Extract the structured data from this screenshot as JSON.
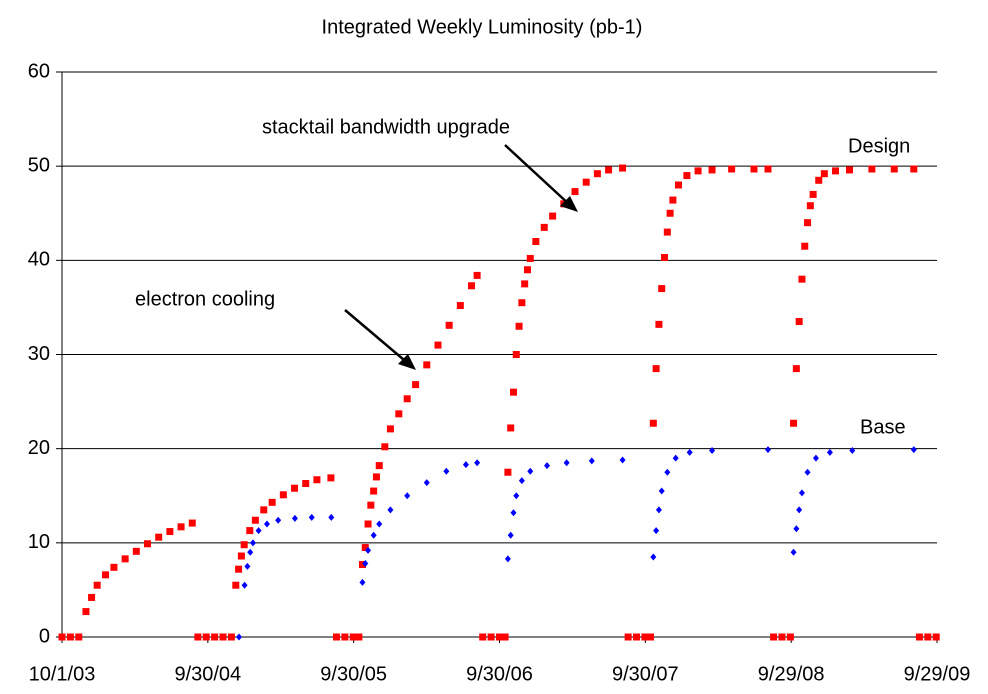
{
  "chart_data": {
    "type": "scatter",
    "title": "Integrated Weekly Luminosity (pb-1)",
    "annotations": [
      "electron cooling",
      "stacktail bandwidth upgrade"
    ],
    "xlim": [
      "2003-10-01",
      "2009-09-29"
    ],
    "xticks": [
      {
        "value": "2003-10-01",
        "label": "10/1/03"
      },
      {
        "value": "2004-09-30",
        "label": "9/30/04"
      },
      {
        "value": "2005-09-30",
        "label": "9/30/05"
      },
      {
        "value": "2006-09-30",
        "label": "9/30/06"
      },
      {
        "value": "2007-09-30",
        "label": "9/30/07"
      },
      {
        "value": "2008-09-29",
        "label": "9/29/08"
      },
      {
        "value": "2009-09-29",
        "label": "9/29/09"
      }
    ],
    "ylim": [
      0,
      60
    ],
    "yticks": [
      0,
      10,
      20,
      30,
      40,
      50,
      60
    ],
    "grid": true,
    "series": [
      {
        "name": "Design",
        "color": "#ff0000",
        "marker": "square",
        "x": [
          "2003-10-01",
          "2003-10-22",
          "2003-11-12",
          "2003-11-30",
          "2003-12-14",
          "2003-12-28",
          "2004-01-18",
          "2004-02-08",
          "2004-03-07",
          "2004-04-04",
          "2004-05-02",
          "2004-05-30",
          "2004-06-27",
          "2004-07-25",
          "2004-08-22",
          "2004-09-05",
          "2004-09-26",
          "2004-10-17",
          "2004-11-07",
          "2004-11-28",
          "2004-12-09",
          "2004-12-16",
          "2004-12-23",
          "2004-12-30",
          "2005-01-13",
          "2005-01-27",
          "2005-02-17",
          "2005-03-10",
          "2005-04-07",
          "2005-05-05",
          "2005-06-02",
          "2005-06-30",
          "2005-08-04",
          "2005-08-18",
          "2005-09-08",
          "2005-09-29",
          "2005-10-13",
          "2005-10-22",
          "2005-10-29",
          "2005-11-05",
          "2005-11-12",
          "2005-11-19",
          "2005-11-26",
          "2005-12-03",
          "2005-12-17",
          "2005-12-31",
          "2006-01-21",
          "2006-02-11",
          "2006-03-04",
          "2006-04-01",
          "2006-04-29",
          "2006-05-27",
          "2006-06-24",
          "2006-07-22",
          "2006-08-05",
          "2006-08-19",
          "2006-09-09",
          "2006-09-30",
          "2006-10-14",
          "2006-10-21",
          "2006-10-28",
          "2006-11-04",
          "2006-11-11",
          "2006-11-18",
          "2006-11-25",
          "2006-12-02",
          "2006-12-09",
          "2006-12-16",
          "2006-12-30",
          "2007-01-20",
          "2007-02-10",
          "2007-03-10",
          "2007-04-07",
          "2007-05-05",
          "2007-06-02",
          "2007-06-30",
          "2007-08-04",
          "2007-08-18",
          "2007-09-08",
          "2007-09-29",
          "2007-10-13",
          "2007-10-20",
          "2007-10-27",
          "2007-11-03",
          "2007-11-10",
          "2007-11-17",
          "2007-11-24",
          "2007-12-01",
          "2007-12-08",
          "2007-12-22",
          "2008-01-12",
          "2008-02-09",
          "2008-03-15",
          "2008-05-03",
          "2008-06-28",
          "2008-08-02",
          "2008-08-16",
          "2008-09-06",
          "2008-09-27",
          "2008-10-05",
          "2008-10-12",
          "2008-10-19",
          "2008-10-26",
          "2008-11-02",
          "2008-11-09",
          "2008-11-16",
          "2008-11-23",
          "2008-12-07",
          "2008-12-21",
          "2009-01-18",
          "2009-02-22",
          "2009-04-19",
          "2009-06-14",
          "2009-08-02",
          "2009-08-16",
          "2009-09-06",
          "2009-09-27"
        ],
        "values": [
          0,
          0,
          0,
          2.7,
          4.2,
          5.5,
          6.6,
          7.4,
          8.3,
          9.1,
          9.9,
          10.6,
          11.2,
          11.7,
          12.1,
          0,
          0,
          0,
          0,
          0,
          5.5,
          7.2,
          8.6,
          9.8,
          11.3,
          12.4,
          13.5,
          14.3,
          15.1,
          15.8,
          16.3,
          16.7,
          16.9,
          0,
          0,
          0,
          0,
          7.7,
          9.5,
          12,
          14,
          15.5,
          17,
          18.2,
          20.2,
          22.1,
          23.7,
          25.3,
          26.8,
          28.9,
          31.0,
          33.1,
          35.2,
          37.3,
          38.4,
          0,
          0,
          0,
          0,
          17.5,
          22.2,
          26,
          30,
          33,
          35.5,
          37.5,
          39,
          40.2,
          42,
          43.5,
          44.7,
          46,
          47.3,
          48.3,
          49.2,
          49.6,
          49.8,
          0,
          0,
          0,
          0,
          22.7,
          28.5,
          33.2,
          37,
          40.3,
          43,
          45,
          46.4,
          48,
          49,
          49.5,
          49.6,
          49.7,
          49.7,
          49.7,
          0,
          0,
          0,
          22.7,
          28.5,
          33.5,
          38,
          41.5,
          44,
          45.8,
          47,
          48.5,
          49.2,
          49.5,
          49.6,
          49.7,
          49.7,
          49.7,
          0,
          0,
          0
        ]
      },
      {
        "name": "Base",
        "color": "#0000ff",
        "marker": "diamond",
        "x": [
          "2004-12-17",
          "2004-12-31",
          "2005-01-07",
          "2005-01-14",
          "2005-01-21",
          "2005-02-04",
          "2005-02-25",
          "2005-03-25",
          "2005-05-06",
          "2005-06-17",
          "2005-08-05",
          "2005-10-22",
          "2005-10-29",
          "2005-11-05",
          "2005-11-19",
          "2005-12-03",
          "2005-12-31",
          "2006-02-11",
          "2006-04-01",
          "2006-05-20",
          "2006-07-08",
          "2006-08-05",
          "2006-10-21",
          "2006-10-28",
          "2006-11-04",
          "2006-11-11",
          "2006-11-25",
          "2006-12-16",
          "2007-01-27",
          "2007-03-17",
          "2007-05-19",
          "2007-08-04",
          "2007-10-20",
          "2007-10-27",
          "2007-11-03",
          "2007-11-10",
          "2007-11-24",
          "2007-12-15",
          "2008-01-19",
          "2008-03-15",
          "2008-08-02",
          "2008-10-05",
          "2008-10-12",
          "2008-10-19",
          "2008-10-26",
          "2008-11-09",
          "2008-11-30",
          "2009-01-04",
          "2009-03-01",
          "2009-08-02"
        ],
        "values": [
          0,
          5.5,
          7.5,
          9.0,
          10.0,
          11.3,
          12.0,
          12.4,
          12.6,
          12.7,
          12.7,
          5.8,
          7.8,
          9.2,
          10.8,
          12.0,
          13.5,
          15.0,
          16.4,
          17.6,
          18.3,
          18.5,
          8.3,
          10.8,
          13.2,
          15,
          16.6,
          17.6,
          18.2,
          18.5,
          18.7,
          18.8,
          8.5,
          11.3,
          13.5,
          15.5,
          17.5,
          19.0,
          19.6,
          19.8,
          19.9,
          9.0,
          11.5,
          13.5,
          15.3,
          17.5,
          19.0,
          19.6,
          19.8,
          19.9
        ]
      }
    ]
  }
}
